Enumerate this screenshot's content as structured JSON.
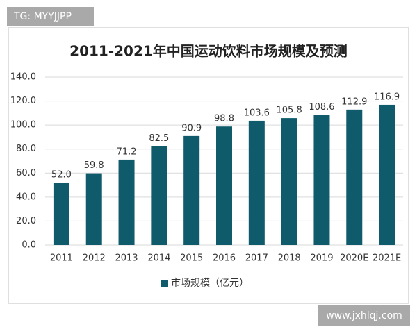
{
  "chart_data": {
    "type": "bar",
    "title": "2011-2021年中国运动饮料市场规模及预测",
    "categories": [
      "2011",
      "2012",
      "2013",
      "2014",
      "2015",
      "2016",
      "2017",
      "2018",
      "2019",
      "2020E",
      "2021E"
    ],
    "series": [
      {
        "name": "市场规模（亿元）",
        "color": "#0f5a6b",
        "values": [
          52.0,
          59.8,
          71.2,
          82.5,
          90.9,
          98.8,
          103.6,
          105.8,
          108.6,
          112.9,
          116.9
        ],
        "value_labels": [
          "52.0",
          "59.8",
          "71.2",
          "82.5",
          "90.9",
          "98.8",
          "103.6",
          "105.8",
          "108.6",
          "112.9",
          "116.9"
        ]
      }
    ],
    "ylim": [
      0,
      140
    ],
    "yticks": [
      {
        "value": 0,
        "label": "0.0"
      },
      {
        "value": 20,
        "label": "20.0"
      },
      {
        "value": 40,
        "label": "40.0"
      },
      {
        "value": 60,
        "label": "60.0"
      },
      {
        "value": 80,
        "label": "80.0"
      },
      {
        "value": 100,
        "label": "100.0"
      },
      {
        "value": 120,
        "label": "120.0"
      },
      {
        "value": 140,
        "label": "140.0"
      }
    ],
    "grid": true,
    "legend": "bottom"
  },
  "watermarks": [
    "TG: MYYJJPP",
    "www.jxhlqj.com"
  ]
}
